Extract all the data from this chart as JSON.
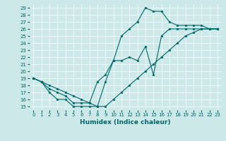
{
  "xlabel": "Humidex (Indice chaleur)",
  "xlim": [
    -0.5,
    23.5
  ],
  "ylim": [
    14.5,
    29.5
  ],
  "xticks": [
    0,
    1,
    2,
    3,
    4,
    5,
    6,
    7,
    8,
    9,
    10,
    11,
    12,
    13,
    14,
    15,
    16,
    17,
    18,
    19,
    20,
    21,
    22,
    23
  ],
  "yticks": [
    15,
    16,
    17,
    18,
    19,
    20,
    21,
    22,
    23,
    24,
    25,
    26,
    27,
    28,
    29
  ],
  "background_color": "#cce8e8",
  "line_color": "#006868",
  "lines": [
    [
      19,
      18.5,
      17,
      16,
      16,
      15,
      15,
      15,
      15,
      18.5,
      21.5,
      25,
      26,
      27,
      29,
      28.5,
      28.5,
      27,
      26.5,
      26.5,
      26.5,
      26.5,
      26,
      26
    ],
    [
      19,
      18.5,
      17.5,
      17,
      16.5,
      15.5,
      15.5,
      15.5,
      18.5,
      19.5,
      21.5,
      21.5,
      22,
      21.5,
      23.5,
      19.5,
      25,
      26,
      26,
      26,
      26,
      26,
      26,
      26
    ],
    [
      19,
      18.5,
      18,
      17.5,
      17,
      16.5,
      16,
      15.5,
      15,
      15,
      16,
      17,
      18,
      19,
      20,
      21,
      22,
      23,
      24,
      25,
      25.5,
      26,
      26,
      26
    ]
  ],
  "xlabel_fontsize": 6.5,
  "tick_fontsize": 5.0
}
